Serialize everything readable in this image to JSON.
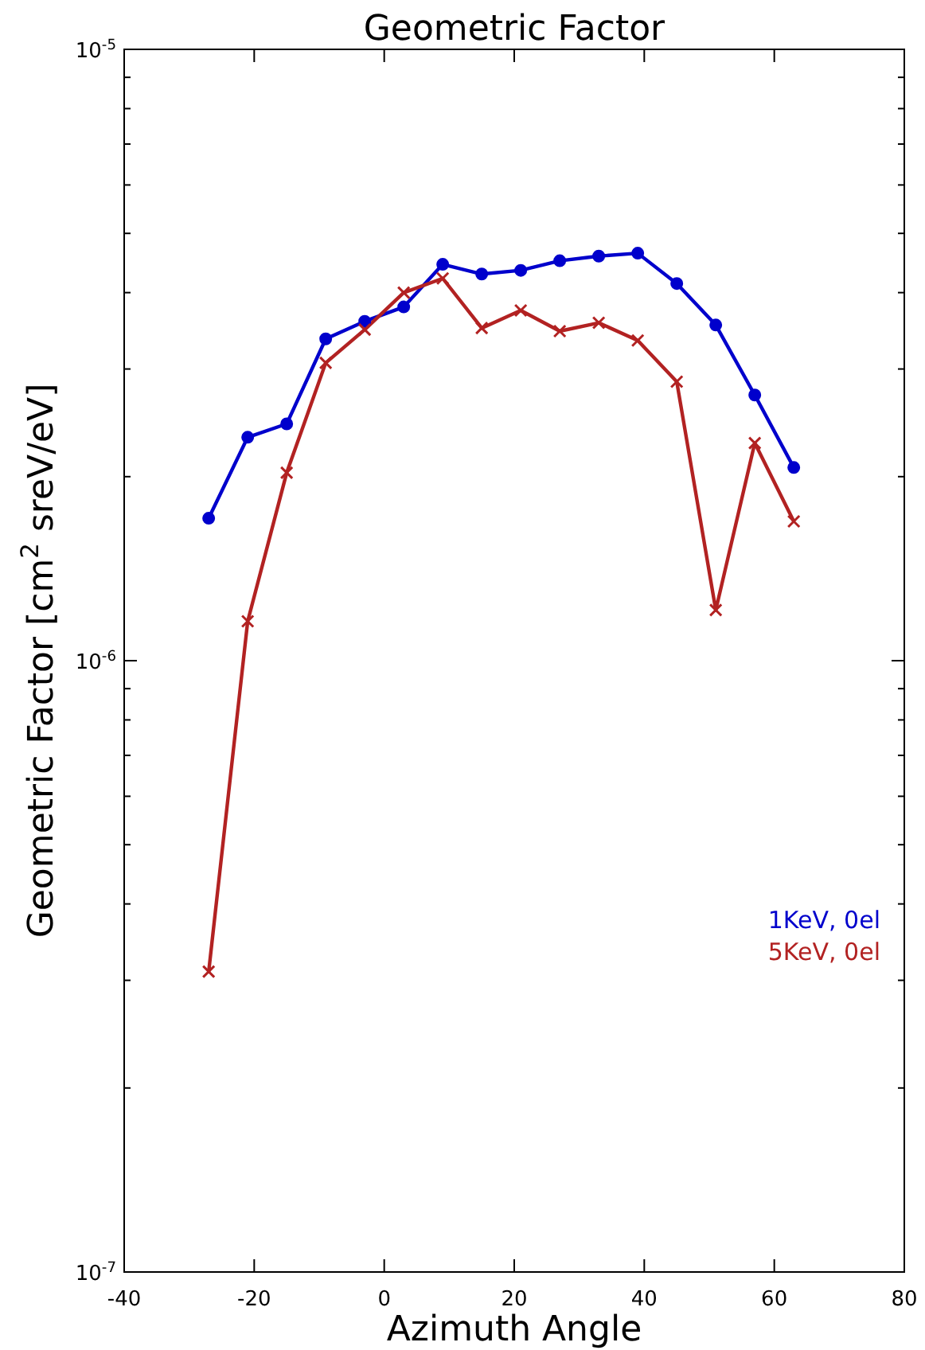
{
  "chart_data": {
    "type": "line",
    "title": "Geometric Factor",
    "xlabel": "Azimuth Angle",
    "ylabel": "Geometric Factor [cm$^{2}$ sreV/eV]",
    "x": [
      -27,
      -21,
      -15,
      -9,
      -3,
      3,
      9,
      15,
      21,
      27,
      33,
      39,
      45,
      51,
      57,
      63
    ],
    "series": [
      {
        "name": "1KeV, 0el",
        "color": "#0000cc",
        "marker": "circle",
        "values": [
          1.71e-06,
          2.32e-06,
          2.44e-06,
          3.36e-06,
          3.59e-06,
          3.79e-06,
          4.45e-06,
          4.29e-06,
          4.35e-06,
          4.51e-06,
          4.59e-06,
          4.64e-06,
          4.14e-06,
          3.54e-06,
          2.72e-06,
          2.07e-06
        ]
      },
      {
        "name": "5KeV, 0el",
        "color": "#b22222",
        "marker": "cross",
        "values": [
          3.1e-07,
          1.16e-06,
          2.03e-06,
          3.07e-06,
          3.48e-06,
          4e-06,
          4.22e-06,
          3.5e-06,
          3.74e-06,
          3.46e-06,
          3.57e-06,
          3.34e-06,
          2.86e-06,
          1.21e-06,
          2.27e-06,
          1.69e-06
        ]
      }
    ],
    "xlim": [
      -40,
      80
    ],
    "xticks": [
      -40,
      -20,
      0,
      20,
      40,
      60,
      80
    ],
    "ylim": [
      1e-07,
      1e-05
    ],
    "log": true,
    "yticks": [
      {
        "value": 1e-07,
        "label": "10$^{-7}$"
      },
      {
        "value": 2e-07,
        "label": null
      },
      {
        "value": 3e-07,
        "label": null
      },
      {
        "value": 4e-07,
        "label": null
      },
      {
        "value": 5e-07,
        "label": null
      },
      {
        "value": 6e-07,
        "label": null
      },
      {
        "value": 7e-07,
        "label": null
      },
      {
        "value": 8e-07,
        "label": null
      },
      {
        "value": 9e-07,
        "label": null
      },
      {
        "value": 1e-06,
        "label": "10$^{-6}$"
      },
      {
        "value": 2e-06,
        "label": null
      },
      {
        "value": 3e-06,
        "label": null
      },
      {
        "value": 4e-06,
        "label": null
      },
      {
        "value": 5e-06,
        "label": null
      },
      {
        "value": 6e-06,
        "label": null
      },
      {
        "value": 7e-06,
        "label": null
      },
      {
        "value": 8e-06,
        "label": null
      },
      {
        "value": 9e-06,
        "label": null
      },
      {
        "value": 1e-05,
        "label": "10$^{-5}$"
      }
    ],
    "grid": false,
    "legend": "bottom right"
  }
}
